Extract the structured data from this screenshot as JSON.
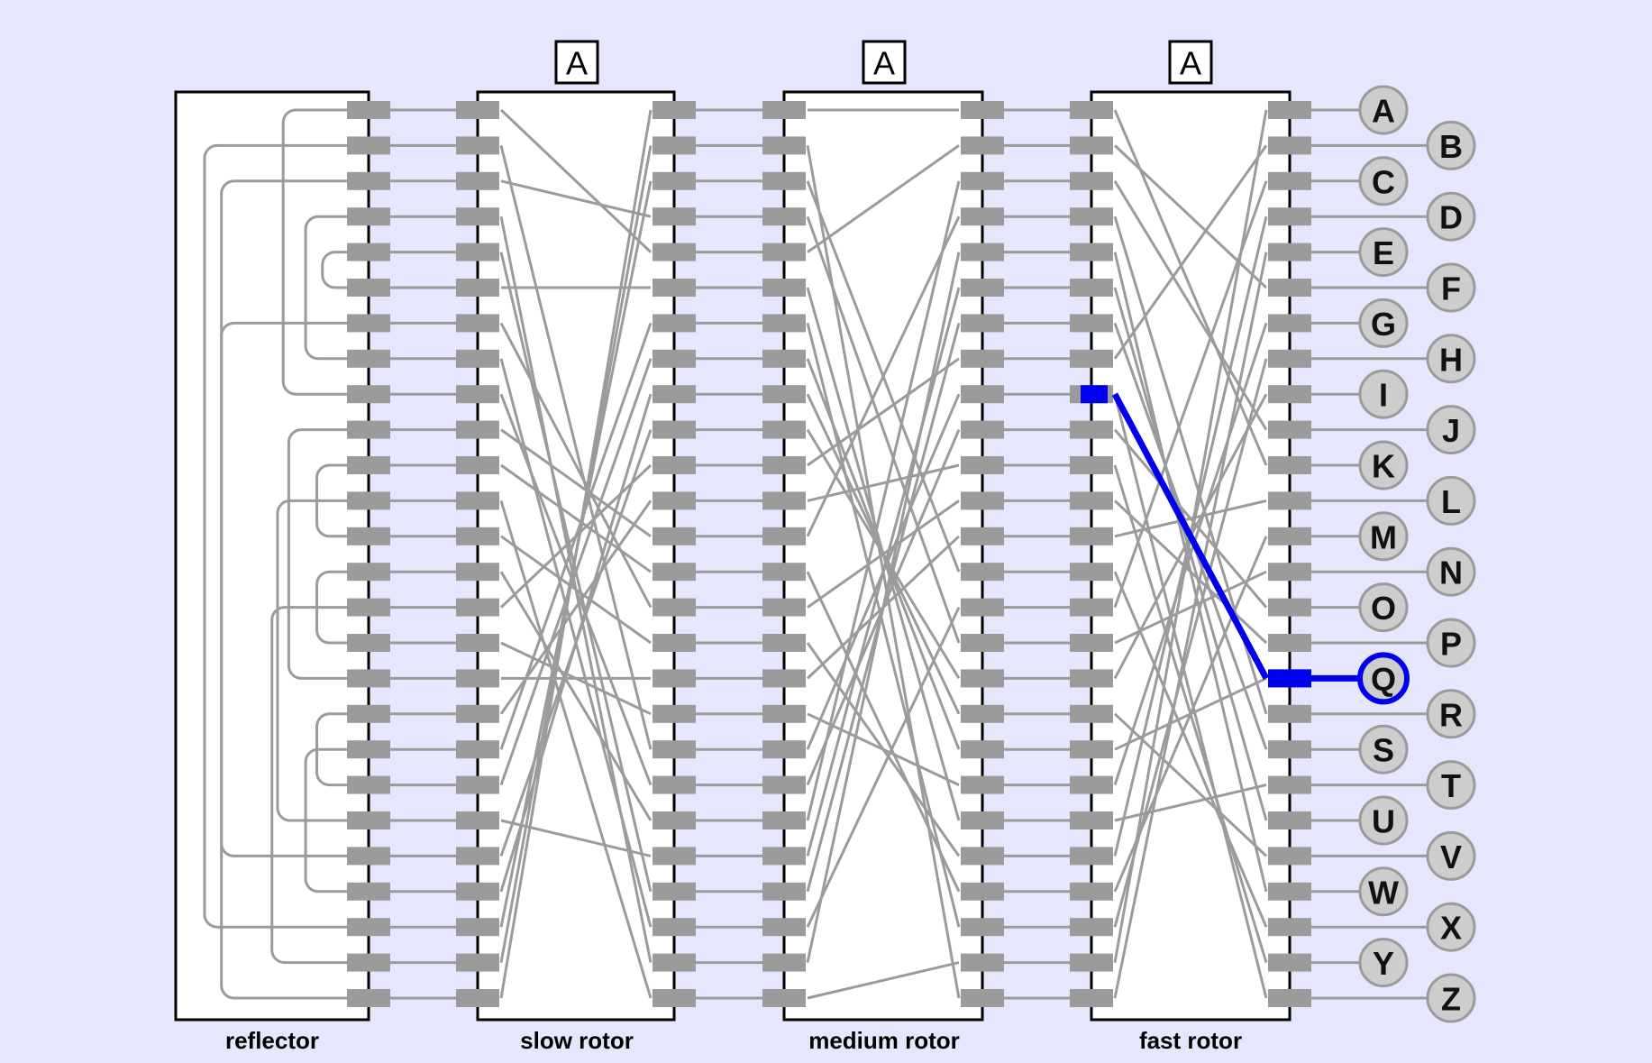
{
  "alphabet": [
    "A",
    "B",
    "C",
    "D",
    "E",
    "F",
    "G",
    "H",
    "I",
    "J",
    "K",
    "L",
    "M",
    "N",
    "O",
    "P",
    "Q",
    "R",
    "S",
    "T",
    "U",
    "V",
    "W",
    "X",
    "Y",
    "Z"
  ],
  "labels": {
    "reflector": "reflector",
    "slow_rotor": "slow rotor",
    "medium_rotor": "medium rotor",
    "fast_rotor": "fast rotor"
  },
  "rotor_windows": {
    "slow": "A",
    "medium": "A",
    "fast": "A"
  },
  "wiring": {
    "reflector_pairs": [
      [
        0,
        8
      ],
      [
        1,
        23
      ],
      [
        2,
        21
      ],
      [
        3,
        7
      ],
      [
        4,
        5
      ],
      [
        6,
        25
      ],
      [
        9,
        16
      ],
      [
        10,
        12
      ],
      [
        11,
        20
      ],
      [
        13,
        15
      ],
      [
        14,
        24
      ],
      [
        17,
        19
      ],
      [
        18,
        22
      ]
    ],
    "slow_rotor_map": [
      25,
      24,
      23,
      2,
      0,
      5,
      18,
      19,
      22,
      21,
      14,
      17,
      9,
      10,
      6,
      12,
      16,
      15,
      1,
      8,
      13,
      20,
      4,
      7,
      3,
      11
    ],
    "medium_rotor_map": [
      0,
      4,
      20,
      12,
      24,
      21,
      22,
      10,
      18,
      19,
      11,
      14,
      16,
      2,
      23,
      3,
      9,
      8,
      7,
      17,
      5,
      15,
      13,
      6,
      25,
      1
    ],
    "fast_rotor_map": [
      24,
      7,
      14,
      21,
      25,
      1,
      19,
      23,
      16,
      2,
      0,
      12,
      22,
      15,
      9,
      11,
      18,
      3,
      6,
      20,
      5,
      17,
      4,
      13,
      10,
      8
    ]
  },
  "signal": {
    "key": "Q",
    "fast_rotor_entry_index": 16,
    "fast_rotor_exit_index": 8
  },
  "colors": {
    "background": "#e6e6fc",
    "wire": "#9b9b9b",
    "pin": "#9b9b9b",
    "active": "#0000ee",
    "key_fill": "#cdcdcd"
  }
}
